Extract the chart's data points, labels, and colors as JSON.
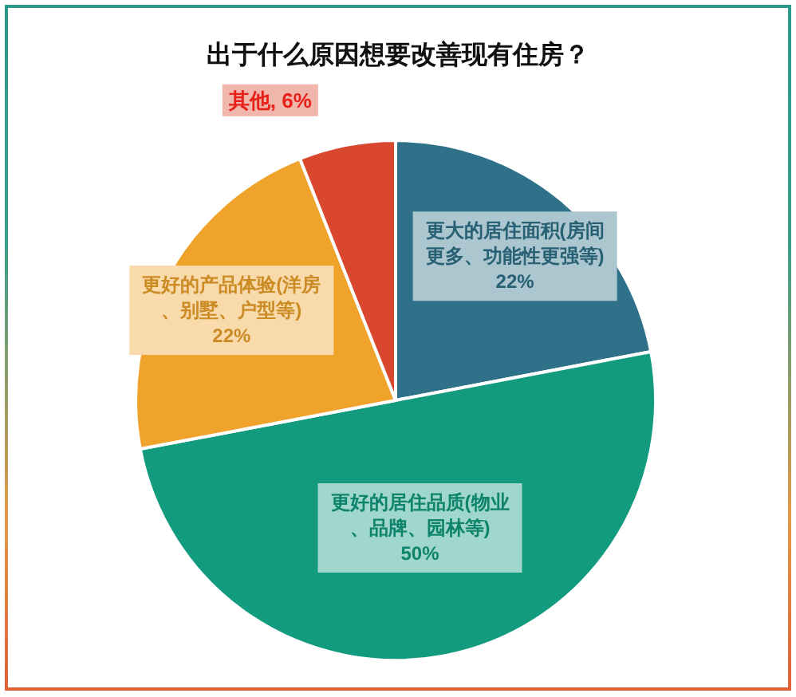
{
  "chart_data": {
    "type": "pie",
    "title": "出于什么原因想要改善现有住房？",
    "categories": [
      "更大的居住面积(房间更多、功能性更强等)",
      "更好的居住品质(物业、品牌、园林等)",
      "更好的产品体验(洋房、别墅、户型等)",
      "其他"
    ],
    "values": [
      22,
      50,
      22,
      6
    ],
    "colors": [
      "#2f7189",
      "#129b7f",
      "#efa32b",
      "#d9472e"
    ],
    "value_labels": [
      "22%",
      "50%",
      "22%",
      "6%"
    ]
  }
}
